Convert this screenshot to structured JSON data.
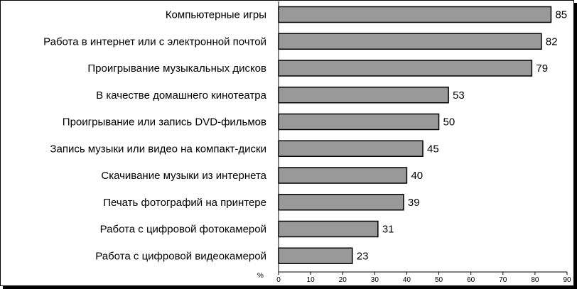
{
  "chart_data": {
    "type": "bar",
    "orientation": "horizontal",
    "categories": [
      "Компьютерные игры",
      "Работа в интернет или с электронной почтой",
      "Проигрывание музыкальных дисков",
      "В качестве домашнего кинотеатра",
      "Проигрывание или запись DVD-фильмов",
      "Запись музыки или видео на компакт-диски",
      "Скачивание музыки из интернета",
      "Печать фотографий на принтере",
      "Работа с цифровой фотокамерой",
      "Работа с цифровой видеокамерой"
    ],
    "values": [
      85,
      82,
      79,
      53,
      50,
      45,
      40,
      39,
      31,
      23
    ],
    "value_labels": [
      "85",
      "82",
      "79",
      "53",
      "50",
      "45",
      "40",
      "39",
      "31",
      "23"
    ],
    "title": "",
    "xlabel": "%",
    "ylabel": "",
    "xlim": [
      0,
      90
    ],
    "xticks": [
      0,
      10,
      20,
      30,
      40,
      50,
      60,
      70,
      80,
      90
    ],
    "xtick_labels": [
      "0",
      "10",
      "20",
      "30",
      "40",
      "50",
      "60",
      "70",
      "80",
      "90"
    ],
    "grid": false,
    "legend": "none",
    "bar_color": "#999999",
    "bar_border_color": "#000000"
  }
}
